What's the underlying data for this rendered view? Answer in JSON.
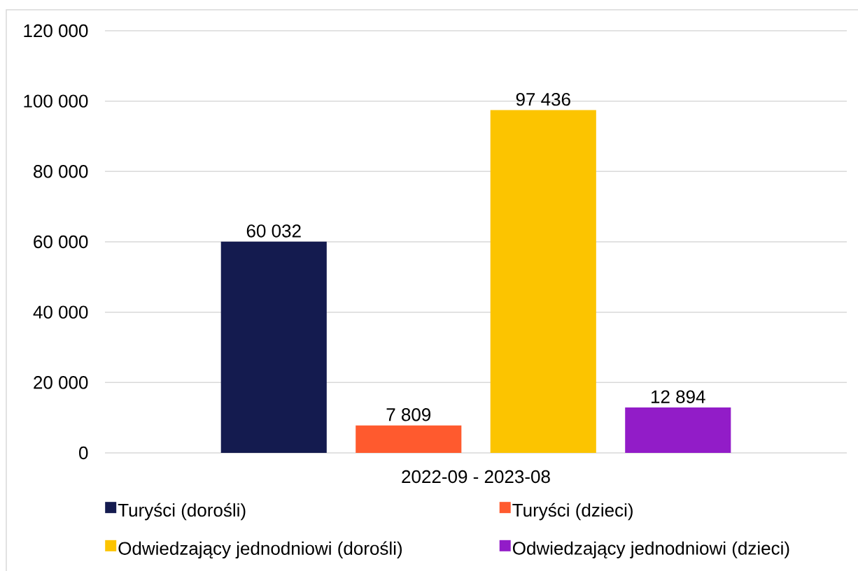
{
  "chart_data": {
    "type": "bar",
    "categories": [
      "2022-09 - 2023-08"
    ],
    "series": [
      {
        "name": "Turyści (dorośli)",
        "color": "#141B4F",
        "values": [
          60032
        ],
        "value_labels": [
          "60 032"
        ]
      },
      {
        "name": "Turyści (dzieci)",
        "color": "#FF5A2E",
        "values": [
          7809
        ],
        "value_labels": [
          "7 809"
        ]
      },
      {
        "name": "Odwiedzający jednodniowi (dorośli)",
        "color": "#FCC400",
        "values": [
          97436
        ],
        "value_labels": [
          "97 436"
        ]
      },
      {
        "name": "Odwiedzający jednodniowi (dzieci)",
        "color": "#921CC8",
        "values": [
          12894
        ],
        "value_labels": [
          "12 894"
        ]
      }
    ],
    "ylim": [
      0,
      120000
    ],
    "yticks": [
      0,
      {
        "value": 20000,
        "label": "20 000"
      },
      {
        "value": 40000,
        "label": "40 000"
      },
      {
        "value": 60000,
        "label": "60 000"
      },
      {
        "value": 80000,
        "label": "80 000"
      },
      {
        "value": 100000,
        "label": "100 000"
      },
      {
        "value": 120000,
        "label": "120 000"
      }
    ],
    "grid": "y",
    "legend": "bottom"
  }
}
